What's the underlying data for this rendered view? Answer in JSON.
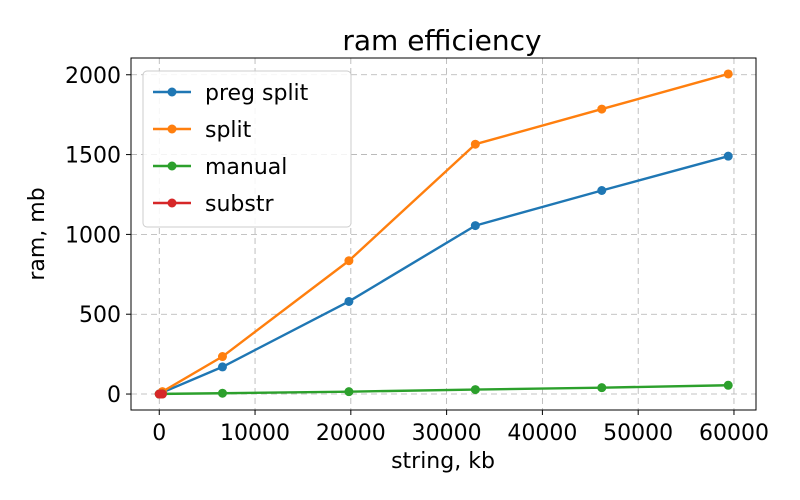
{
  "chart_data": {
    "type": "line",
    "title": "ram efficiency",
    "xlabel": "string, kb",
    "ylabel": "ram, mb",
    "xlim": [
      -2950,
      62300
    ],
    "ylim": [
      -100,
      2105
    ],
    "xticks": [
      0,
      10000,
      20000,
      30000,
      40000,
      50000,
      60000
    ],
    "yticks": [
      0,
      500,
      1000,
      1500,
      2000
    ],
    "grid": true,
    "legend_position": "upper-left",
    "series": [
      {
        "name": "preg split",
        "color": "#1f77b4",
        "x": [
          0,
          330,
          6600,
          19800,
          33000,
          46200,
          59400
        ],
        "y": [
          0,
          10,
          170,
          580,
          1055,
          1275,
          1490
        ]
      },
      {
        "name": "split",
        "color": "#ff7f0e",
        "x": [
          0,
          330,
          6600,
          19800,
          33000,
          46200,
          59400
        ],
        "y": [
          0,
          15,
          235,
          835,
          1565,
          1785,
          2005
        ]
      },
      {
        "name": "manual",
        "color": "#2ca02c",
        "x": [
          0,
          330,
          6600,
          19800,
          33000,
          46200,
          59400
        ],
        "y": [
          0,
          1,
          5,
          15,
          28,
          40,
          55
        ]
      },
      {
        "name": "substr",
        "color": "#d62728",
        "x": [
          0,
          130,
          330
        ],
        "y": [
          0,
          0,
          0
        ]
      }
    ]
  }
}
